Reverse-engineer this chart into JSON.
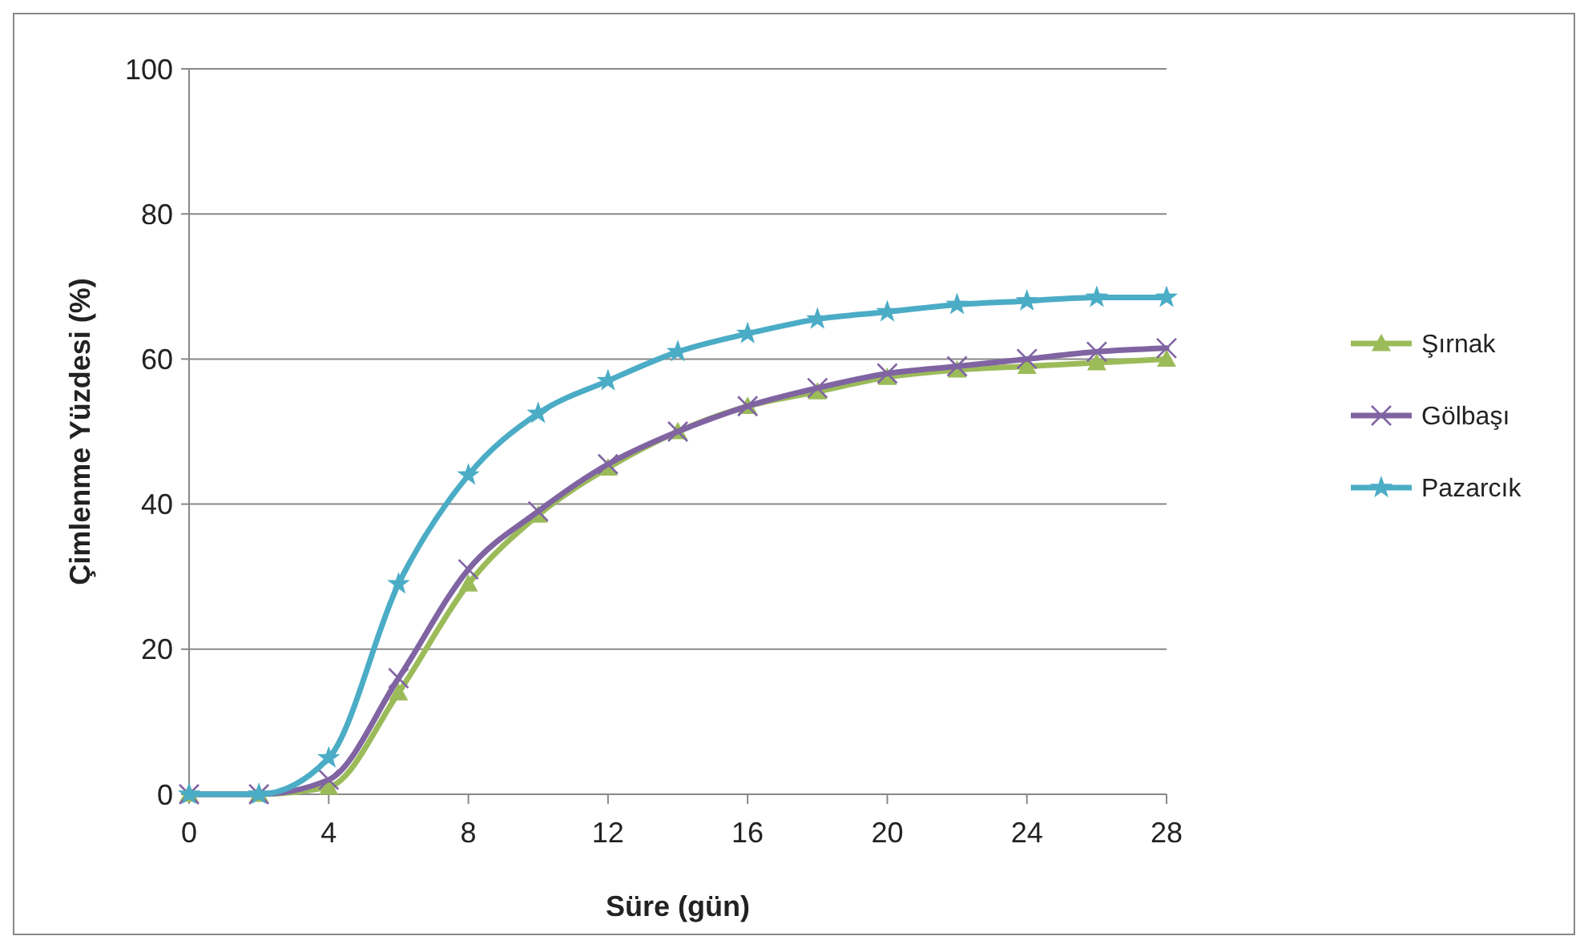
{
  "chart_data": {
    "type": "line",
    "xlabel": "Süre (gün)",
    "ylabel": "Çimlenme Yüzdesi (%)",
    "x": [
      0,
      2,
      4,
      6,
      8,
      10,
      12,
      14,
      16,
      18,
      20,
      22,
      24,
      26,
      28
    ],
    "xlim": [
      0,
      28
    ],
    "xticks": [
      0,
      4,
      8,
      12,
      16,
      20,
      24,
      28
    ],
    "ylim": [
      0,
      100
    ],
    "yticks": [
      0,
      20,
      40,
      60,
      80,
      100
    ],
    "grid": "y",
    "legend": "right",
    "series": [
      {
        "name": "Şırnak",
        "color": "#9bbb59",
        "marker": "triangle",
        "values": [
          0,
          0,
          1,
          14,
          29,
          38.5,
          45,
          50,
          53.5,
          55.5,
          57.5,
          58.5,
          59,
          59.5,
          60
        ]
      },
      {
        "name": "Gölbaşı",
        "color": "#8064a2",
        "marker": "cross",
        "values": [
          0,
          0,
          2,
          16,
          31,
          39,
          45.5,
          50,
          53.5,
          56,
          58,
          59,
          60,
          61,
          61.5
        ]
      },
      {
        "name": "Pazarcık",
        "color": "#4bacc6",
        "marker": "star",
        "values": [
          0,
          0,
          5,
          29,
          44,
          52.5,
          57,
          61,
          63.5,
          65.5,
          66.5,
          67.5,
          68,
          68.5,
          68.5
        ]
      }
    ]
  }
}
